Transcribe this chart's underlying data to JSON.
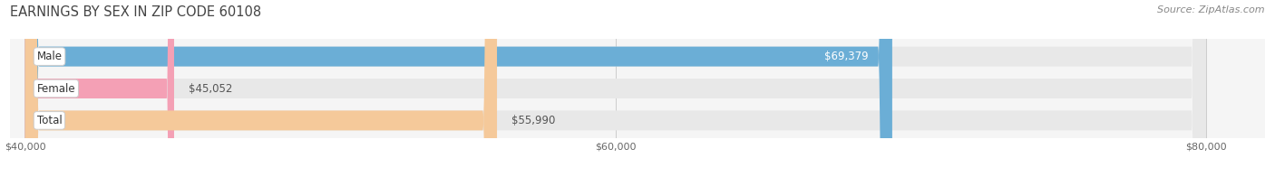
{
  "title": "EARNINGS BY SEX IN ZIP CODE 60108",
  "source": "Source: ZipAtlas.com",
  "categories": [
    "Male",
    "Female",
    "Total"
  ],
  "values": [
    69379,
    45052,
    55990
  ],
  "bar_colors": [
    "#6baed6",
    "#f4a0b5",
    "#f5c99a"
  ],
  "bar_track_color": "#e8e8e8",
  "x_min": 40000,
  "x_max": 80000,
  "x_ticks": [
    40000,
    60000,
    80000
  ],
  "x_tick_labels": [
    "$40,000",
    "$60,000",
    "$80,000"
  ],
  "title_color": "#444444",
  "title_fontsize": 10.5,
  "source_fontsize": 8,
  "bar_label_fontsize": 8.5,
  "category_fontsize": 8.5,
  "bar_height": 0.62,
  "figsize": [
    14.06,
    1.96
  ],
  "dpi": 100
}
